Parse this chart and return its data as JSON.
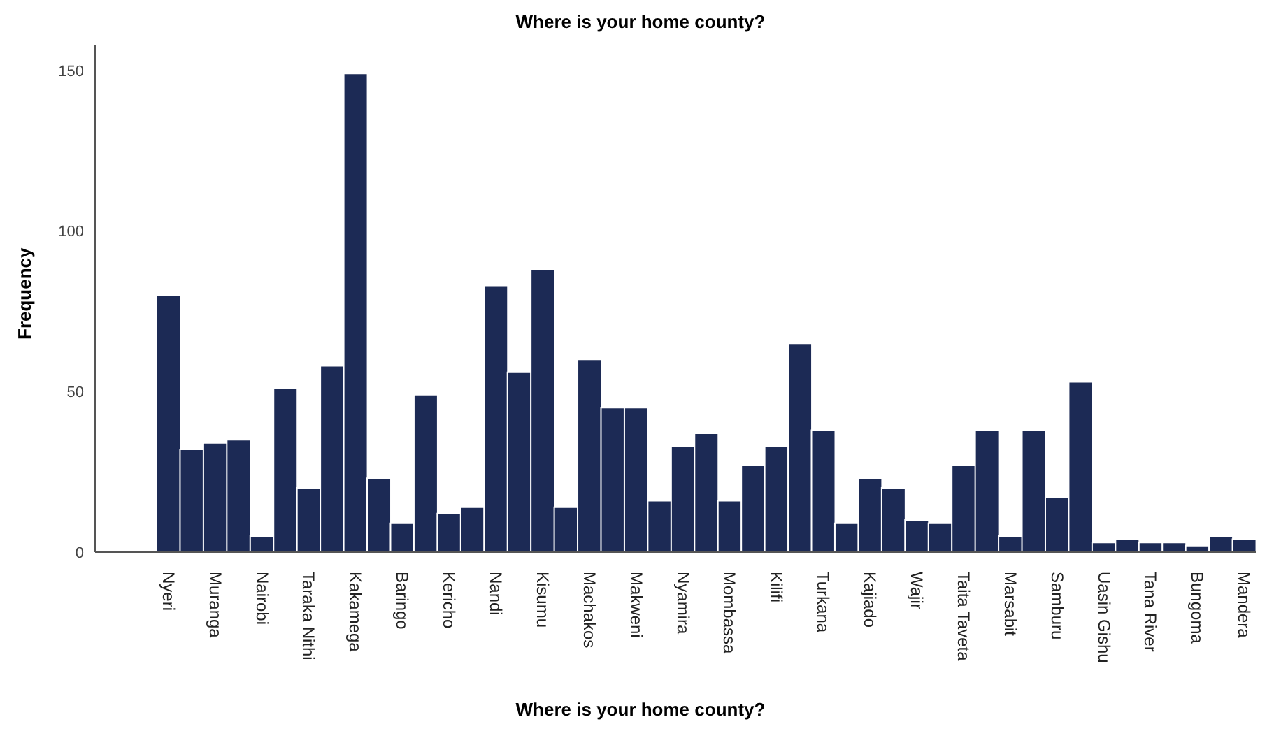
{
  "chart_data": {
    "type": "bar",
    "title": "Where is your home county?",
    "xlabel": "Where is your home county?",
    "ylabel": "Frequency",
    "categories": [
      "Nyeri",
      null,
      "Muranga",
      null,
      "Nairobi",
      null,
      "Taraka Nithi",
      null,
      "Kakamega",
      null,
      "Baringo",
      null,
      "Kericho",
      null,
      "Nandi",
      null,
      "Kisumu",
      null,
      "Machakos",
      null,
      "Makweni",
      null,
      "Nyamira",
      null,
      "Mombassa",
      null,
      "Kilifi",
      null,
      "Turkana",
      null,
      "Kajiado",
      null,
      "Wajir",
      null,
      "Taita Taveta",
      null,
      "Marsabit",
      null,
      "Samburu",
      null,
      "Uasin Gishu",
      null,
      "Tana River",
      null,
      "Bungoma",
      null,
      "Mandera"
    ],
    "values": [
      80,
      32,
      34,
      35,
      5,
      51,
      20,
      58,
      149,
      23,
      9,
      49,
      12,
      14,
      83,
      56,
      88,
      14,
      60,
      45,
      45,
      16,
      33,
      37,
      16,
      27,
      33,
      65,
      38,
      9,
      23,
      20,
      10,
      9,
      27,
      38,
      5,
      38,
      17,
      53,
      3,
      4,
      3,
      3,
      2,
      5,
      4
    ],
    "color": "#1c2a55",
    "ylim": [
      0,
      158
    ],
    "yticks": [
      0,
      50,
      100,
      150
    ],
    "grid": false,
    "legend": false
  }
}
